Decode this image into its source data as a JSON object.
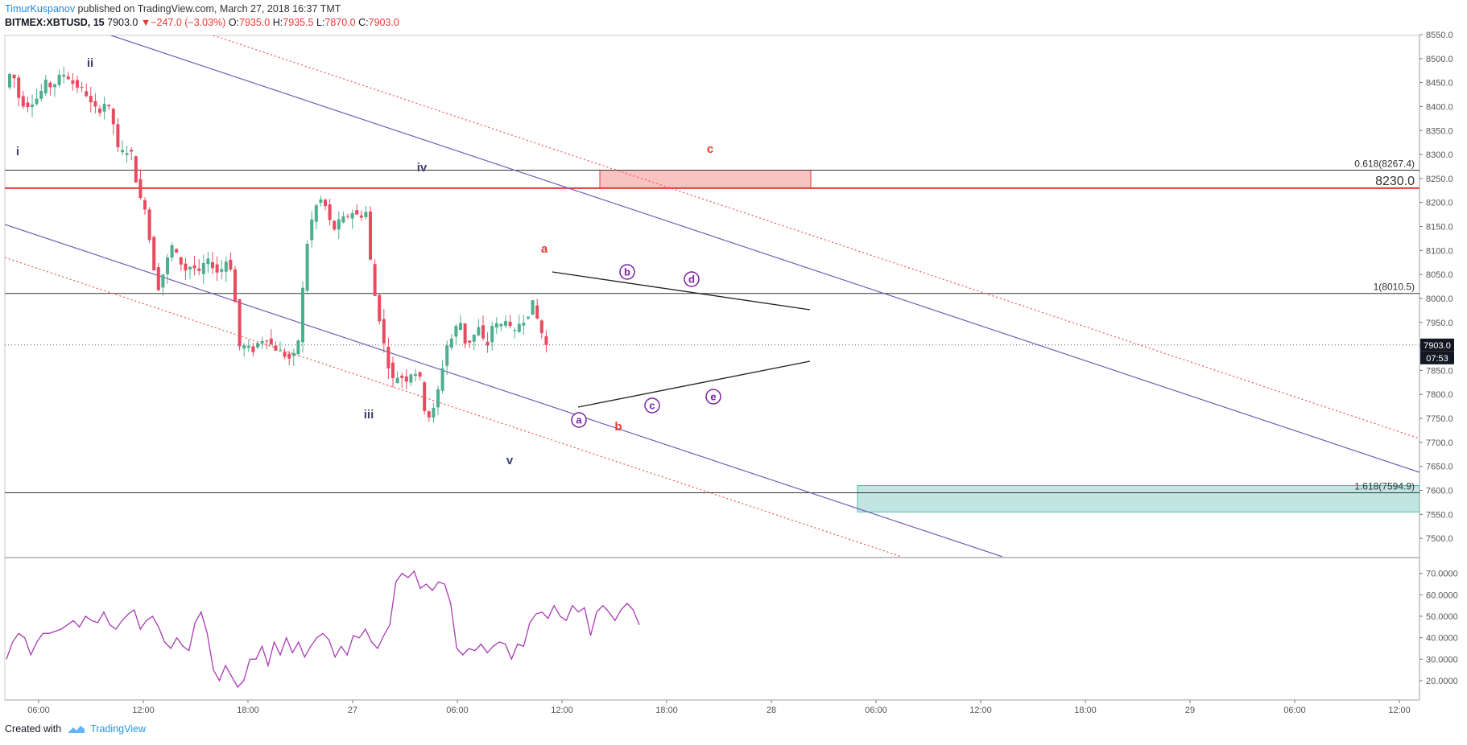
{
  "header": {
    "author": "TimurKuspanov",
    "published_text": " published on TradingView.com, March 27, 2018 16:37 TMT"
  },
  "info": {
    "symbol": "BITMEX:XBTUSD, 15",
    "last": "7903.0",
    "arrow": "▼",
    "change": "−247.0 (−3.03%)",
    "o_label": "O:",
    "o": "7935.0",
    "h_label": "H:",
    "h": "7935.5",
    "l_label": "L:",
    "l": "7870.0",
    "c_label": "C:",
    "c": "7903.0"
  },
  "footer": {
    "created_with": "Created with",
    "brand": "TradingView",
    "logo_icon": "tradingview-logo-icon"
  },
  "colors": {
    "up": "#4caf8e",
    "down": "#e84a5f",
    "channel": "#6a5fb8",
    "channel_dotted": "#ef5350",
    "resistance": "#e53935",
    "support_zone": "#4db6ac",
    "rsi": "#a83cb4",
    "wave_label": "#3d3d6b"
  },
  "chart_data": [
    {
      "type": "candlestick",
      "symbol": "BITMEX:XBTUSD",
      "interval": "15",
      "y_range": [
        7480,
        8560
      ],
      "y_ticks": [
        "8550.0",
        "8500.0",
        "8450.0",
        "8400.0",
        "8350.0",
        "8300.0",
        "8250.0",
        "8200.0",
        "8150.0",
        "8100.0",
        "8050.0",
        "8000.0",
        "7950.0",
        "7900.0",
        "7850.0",
        "7800.0",
        "7750.0",
        "7700.0",
        "7650.0",
        "7600.0",
        "7550.0",
        "7500.0"
      ],
      "x_ticks": [
        "06:00",
        "12:00",
        "18:00",
        "27",
        "06:00",
        "12:00",
        "18:00",
        "28",
        "06:00",
        "12:00",
        "18:00",
        "29",
        "06:00",
        "12:00"
      ],
      "last_price_label": "7903.0",
      "countdown_label": "07:53",
      "last_price": 7903.0,
      "price_path": [
        8440,
        8480,
        8420,
        8400,
        8410,
        8420,
        8450,
        8440,
        8460,
        8470,
        8450,
        8440,
        8430,
        8400,
        8390,
        8410,
        8380,
        8300,
        8310,
        8300,
        8210,
        8190,
        8080,
        8020,
        8070,
        8110,
        8080,
        8060,
        8070,
        8050,
        8080,
        8070,
        8050,
        8080,
        8060,
        7900,
        7900,
        7890,
        7910,
        7920,
        7900,
        7890,
        7880,
        7870,
        7920,
        8100,
        8170,
        8210,
        8190,
        8140,
        8160,
        8170,
        8180,
        8170,
        8180,
        8030,
        7960,
        7880,
        7830,
        7840,
        7830,
        7850,
        7840,
        7750,
        7760,
        7820,
        7900,
        7920,
        7960,
        7900,
        7920,
        7940,
        7890,
        7950,
        7940,
        7960,
        7920,
        7950,
        7960,
        7990,
        7940,
        7903
      ],
      "candle_count": 120,
      "horizontal_levels": [
        {
          "label": "0.618(8267.4)",
          "price": 8267.4
        },
        {
          "label": "8230.0",
          "price": 8230.0
        },
        {
          "label": "1(8010.5)",
          "price": 8010.5
        },
        {
          "label": "1.618(7594.9)",
          "price": 7594.9
        }
      ],
      "zones": [
        {
          "name": "resistance-zone",
          "price_top": 8267.4,
          "price_bottom": 8230.0
        },
        {
          "name": "target-zone",
          "price_top": 7610,
          "price_bottom": 7555
        }
      ],
      "wave_labels": [
        "i",
        "ii",
        "iii",
        "iv",
        "v"
      ],
      "abc_labels": [
        "a",
        "b",
        "c"
      ],
      "triangle_labels": [
        "a",
        "b",
        "c",
        "d",
        "e"
      ],
      "legend": "none",
      "grid": false
    },
    {
      "type": "line",
      "name": "",
      "y_range": [
        14,
        74
      ],
      "y_ticks": [
        "70.0000",
        "60.0000",
        "50.0000",
        "40.0000",
        "30.0000",
        "20.0000"
      ],
      "values": [
        30,
        38,
        42,
        40,
        32,
        38,
        42,
        42,
        43,
        44,
        46,
        48,
        45,
        50,
        48,
        47,
        52,
        46,
        44,
        48,
        51,
        53,
        44,
        48,
        50,
        45,
        38,
        35,
        40,
        36,
        34,
        47,
        52,
        42,
        25,
        20,
        27,
        22,
        17,
        20,
        30,
        30,
        36,
        27,
        38,
        32,
        40,
        33,
        38,
        31,
        36,
        40,
        42,
        39,
        31,
        36,
        32,
        41,
        40,
        44,
        38,
        35,
        41,
        46,
        66,
        70,
        68,
        71,
        63,
        65,
        62,
        66,
        65,
        56,
        35,
        32,
        35,
        34,
        37,
        33,
        36,
        38,
        37,
        30,
        37,
        36,
        47,
        51,
        52,
        49,
        55,
        50,
        48,
        55,
        52,
        54,
        41,
        52,
        55,
        52,
        48,
        53,
        56,
        53,
        46
      ]
    }
  ]
}
